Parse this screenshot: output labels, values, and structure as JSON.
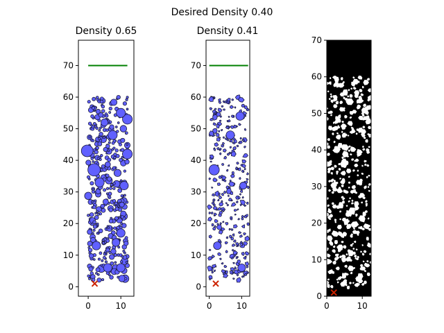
{
  "figure": {
    "suptitle": "Desired Density 0.40"
  },
  "colors": {
    "particle_fill": "#6060ff",
    "particle_edge": "#1a1a3a",
    "goal_line": "#008000",
    "marker": "#cc2200",
    "mask_background": "#000000",
    "mask_particle": "#ffffff"
  },
  "chart_data": [
    {
      "type": "scatter",
      "title": "Density 0.65",
      "xlabel": "",
      "ylabel": "",
      "xlim": [
        -3,
        14
      ],
      "ylim": [
        -3,
        78
      ],
      "xticks": [
        0,
        10
      ],
      "yticks": [
        0,
        10,
        20,
        30,
        40,
        50,
        60,
        70
      ],
      "goal_line": {
        "x": [
          0,
          12
        ],
        "y": 70
      },
      "marker": {
        "x": 2,
        "y": 1
      },
      "particle_region": {
        "x": [
          0,
          12
        ],
        "y": [
          2,
          60
        ]
      },
      "particle_count": 420,
      "large_particles": [
        {
          "x": -0.3,
          "y": 43,
          "r": 1.8
        },
        {
          "x": 1.8,
          "y": 37,
          "r": 1.9
        },
        {
          "x": 12.0,
          "y": 53,
          "r": 1.5
        },
        {
          "x": 12.0,
          "y": 42,
          "r": 1.5
        },
        {
          "x": 10.0,
          "y": 55,
          "r": 1.4
        },
        {
          "x": 7.5,
          "y": 48,
          "r": 1.4
        },
        {
          "x": 3.5,
          "y": 33,
          "r": 1.4
        },
        {
          "x": 11.0,
          "y": 32,
          "r": 1.3
        },
        {
          "x": 10.0,
          "y": 17,
          "r": 1.3
        },
        {
          "x": 2.5,
          "y": 13,
          "r": 1.3
        },
        {
          "x": 10.0,
          "y": 6,
          "r": 1.3
        },
        {
          "x": 6.0,
          "y": 6,
          "r": 1.3
        },
        {
          "x": 8.5,
          "y": 14,
          "r": 1.2
        },
        {
          "x": 5.0,
          "y": 52,
          "r": 1.1
        },
        {
          "x": 9.0,
          "y": 36,
          "r": 1.1
        }
      ]
    },
    {
      "type": "scatter",
      "title": "Density 0.41",
      "xlabel": "",
      "ylabel": "",
      "xlim": [
        -1,
        12.5
      ],
      "ylim": [
        -3,
        78
      ],
      "xticks": [
        0,
        10
      ],
      "yticks": [
        0,
        10,
        20,
        30,
        40,
        50,
        60,
        70
      ],
      "goal_line": {
        "x": [
          0,
          12
        ],
        "y": 70
      },
      "marker": {
        "x": 2,
        "y": 1
      },
      "particle_region": {
        "x": [
          0,
          12
        ],
        "y": [
          2,
          60
        ]
      },
      "particle_count": 300,
      "large_particles": [
        {
          "x": 1.5,
          "y": 37,
          "r": 1.6
        },
        {
          "x": 9.5,
          "y": 54,
          "r": 1.3
        },
        {
          "x": 6.5,
          "y": 48,
          "r": 1.3
        },
        {
          "x": 10.0,
          "y": 6,
          "r": 1.2
        },
        {
          "x": 2.5,
          "y": 13,
          "r": 1.2
        },
        {
          "x": 10.5,
          "y": 32,
          "r": 1.1
        }
      ]
    },
    {
      "type": "heatmap",
      "title": "",
      "xlabel": "",
      "ylabel": "",
      "xlim": [
        0,
        12.5
      ],
      "ylim": [
        0,
        70
      ],
      "xticks": [
        0,
        10
      ],
      "yticks": [
        0,
        10,
        20,
        30,
        40,
        50,
        60,
        70
      ],
      "marker": {
        "x": 2,
        "y": 1
      },
      "particle_region": {
        "x": [
          0,
          12.5
        ],
        "y": [
          2,
          60
        ]
      },
      "particle_count": 420,
      "description": "binary mask: white particles on black"
    }
  ]
}
